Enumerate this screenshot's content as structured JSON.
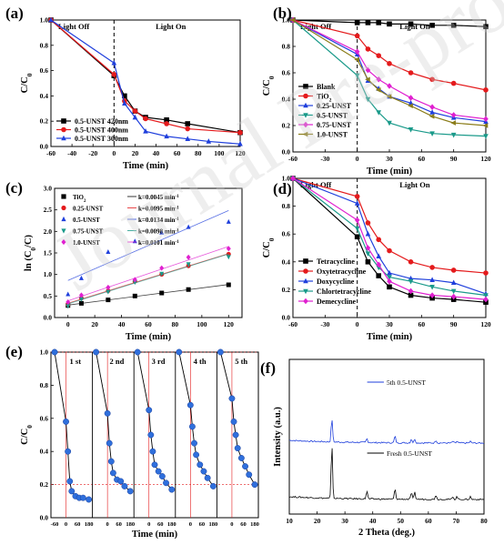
{
  "watermark": "Journal Pre-proof",
  "chart_data": [
    {
      "panel": "(a)",
      "type": "line",
      "ylabel": "C/C0",
      "xlabel": "Time (min)",
      "xlim": [
        -60,
        120
      ],
      "ylim": [
        0,
        1.0
      ],
      "xticks": [
        -60,
        -40,
        -20,
        0,
        20,
        40,
        60,
        80,
        100,
        120
      ],
      "yticks": [
        0.0,
        0.2,
        0.4,
        0.6,
        0.8,
        1.0
      ],
      "light_off_label": "Light Off",
      "light_on_label": "Light On",
      "legend": "bottom-left",
      "series": [
        {
          "name": "0.5-UNST 420nm",
          "color": "#000000",
          "marker": "square",
          "x": [
            -60,
            0,
            10,
            20,
            30,
            50,
            70,
            120
          ],
          "y": [
            1.0,
            0.56,
            0.4,
            0.28,
            0.23,
            0.21,
            0.18,
            0.11
          ]
        },
        {
          "name": "0.5-UNST 400nm",
          "color": "#e41a1c",
          "marker": "circle",
          "x": [
            -60,
            0,
            10,
            20,
            30,
            50,
            70,
            120
          ],
          "y": [
            1.0,
            0.57,
            0.36,
            0.28,
            0.22,
            0.18,
            0.14,
            0.11
          ]
        },
        {
          "name": "0.5-UNST 300nm",
          "color": "#1f3fdc",
          "marker": "triangle",
          "x": [
            -60,
            0,
            10,
            20,
            30,
            50,
            70,
            90,
            120
          ],
          "y": [
            1.0,
            0.66,
            0.34,
            0.23,
            0.12,
            0.08,
            0.06,
            0.04,
            0.02
          ]
        }
      ]
    },
    {
      "panel": "(b)",
      "type": "line",
      "ylabel": "C/C0",
      "xlabel": "Time (min)",
      "xlim": [
        -60,
        120
      ],
      "ylim": [
        0,
        1.0
      ],
      "xticks": [
        -60,
        -30,
        0,
        30,
        60,
        90,
        120
      ],
      "yticks": [
        0.0,
        0.2,
        0.4,
        0.6,
        0.8,
        1.0
      ],
      "light_off_label": "Light Off",
      "light_on_label": "Light On",
      "legend": "bottom-left",
      "series": [
        {
          "name": "Blank",
          "color": "#000000",
          "marker": "square",
          "x": [
            -60,
            0,
            10,
            20,
            30,
            50,
            70,
            90,
            120
          ],
          "y": [
            1.0,
            0.98,
            0.98,
            0.98,
            0.97,
            0.97,
            0.96,
            0.96,
            0.95
          ]
        },
        {
          "name": "TiO2",
          "color": "#e41a1c",
          "marker": "circle",
          "x": [
            -60,
            0,
            10,
            20,
            30,
            50,
            70,
            90,
            120
          ],
          "y": [
            1.0,
            0.88,
            0.78,
            0.73,
            0.67,
            0.6,
            0.55,
            0.52,
            0.47
          ]
        },
        {
          "name": "0.25-UNST",
          "color": "#1f3fdc",
          "marker": "triangle",
          "x": [
            -60,
            0,
            10,
            20,
            30,
            50,
            70,
            90,
            120
          ],
          "y": [
            1.0,
            0.74,
            0.54,
            0.48,
            0.42,
            0.37,
            0.3,
            0.26,
            0.23
          ]
        },
        {
          "name": "0.5-UNST",
          "color": "#1a9a8a",
          "marker": "triangle-down",
          "x": [
            -60,
            0,
            10,
            20,
            30,
            50,
            70,
            90,
            120
          ],
          "y": [
            1.0,
            0.58,
            0.4,
            0.3,
            0.22,
            0.17,
            0.14,
            0.13,
            0.12
          ]
        },
        {
          "name": "0.75-UNST",
          "color": "#e020d0",
          "marker": "diamond",
          "x": [
            -60,
            0,
            10,
            20,
            30,
            50,
            70,
            90,
            120
          ],
          "y": [
            1.0,
            0.76,
            0.62,
            0.55,
            0.5,
            0.41,
            0.34,
            0.28,
            0.25
          ]
        },
        {
          "name": "1.0-UNST",
          "color": "#8b7d1a",
          "marker": "triangle-left",
          "x": [
            -60,
            0,
            10,
            20,
            30,
            50,
            70,
            90,
            120
          ],
          "y": [
            1.0,
            0.7,
            0.55,
            0.47,
            0.42,
            0.35,
            0.27,
            0.22,
            0.2
          ]
        }
      ]
    },
    {
      "panel": "(c)",
      "type": "scatter",
      "ylabel": "ln (C0/C)",
      "xlabel": "Time (min)",
      "xlim": [
        -10,
        130
      ],
      "ylim": [
        0,
        3.0
      ],
      "xticks": [
        0,
        20,
        40,
        60,
        80,
        100,
        120
      ],
      "yticks": [
        0.0,
        0.5,
        1.0,
        1.5,
        2.0,
        2.5,
        3.0
      ],
      "legend": "top-left",
      "series": [
        {
          "name": "TiO2",
          "k": "k=0.0045 min-1",
          "color": "#000000",
          "marker": "square",
          "x": [
            0,
            10,
            30,
            50,
            70,
            90,
            120
          ],
          "y": [
            0.28,
            0.33,
            0.41,
            0.5,
            0.57,
            0.65,
            0.76
          ]
        },
        {
          "name": "0.25-UNST",
          "k": "k=0.0095 min-1",
          "color": "#e41a1c",
          "marker": "circle",
          "x": [
            0,
            10,
            30,
            50,
            70,
            90,
            120
          ],
          "y": [
            0.3,
            0.45,
            0.62,
            0.84,
            1.0,
            1.2,
            1.47
          ]
        },
        {
          "name": "0.5-UNST",
          "k": "k=0.0134 min-1",
          "color": "#1f3fdc",
          "marker": "triangle",
          "x": [
            0,
            10,
            30,
            50,
            70,
            90,
            120
          ],
          "y": [
            0.54,
            0.91,
            1.52,
            1.77,
            1.97,
            2.1,
            2.22
          ]
        },
        {
          "name": "0.75-UNST",
          "k": "k=0.0098 min-1",
          "color": "#1a9a8a",
          "marker": "triangle-down",
          "x": [
            0,
            10,
            30,
            50,
            70,
            90,
            120
          ],
          "y": [
            0.27,
            0.43,
            0.6,
            0.82,
            1.02,
            1.24,
            1.41
          ]
        },
        {
          "name": "1.0-UNST",
          "k": "k=0.0101 min-1",
          "color": "#e020d0",
          "marker": "diamond",
          "x": [
            0,
            10,
            30,
            50,
            70,
            90,
            120
          ],
          "y": [
            0.36,
            0.52,
            0.7,
            0.88,
            1.15,
            1.4,
            1.6
          ]
        }
      ]
    },
    {
      "panel": "(d)",
      "type": "line",
      "ylabel": "C/C0",
      "xlabel": "Time (min)",
      "xlim": [
        -60,
        120
      ],
      "ylim": [
        0,
        1.0
      ],
      "xticks": [
        -60,
        -30,
        0,
        30,
        60,
        90,
        120
      ],
      "yticks": [
        0.0,
        0.2,
        0.4,
        0.6,
        0.8,
        1.0
      ],
      "light_off_label": "Light Off",
      "light_on_label": "Light On",
      "legend": "bottom-left",
      "series": [
        {
          "name": "Tetracycline",
          "color": "#000000",
          "marker": "square",
          "x": [
            -60,
            0,
            10,
            20,
            30,
            50,
            70,
            90,
            120
          ],
          "y": [
            1.0,
            0.58,
            0.4,
            0.3,
            0.22,
            0.16,
            0.14,
            0.13,
            0.11
          ]
        },
        {
          "name": "Oxytetracycline",
          "color": "#e41a1c",
          "marker": "circle",
          "x": [
            -60,
            0,
            10,
            20,
            30,
            50,
            70,
            90,
            120
          ],
          "y": [
            1.0,
            0.87,
            0.68,
            0.56,
            0.48,
            0.4,
            0.36,
            0.34,
            0.32
          ]
        },
        {
          "name": "Doxycycline",
          "color": "#1f3fdc",
          "marker": "triangle",
          "x": [
            -60,
            0,
            10,
            20,
            30,
            50,
            70,
            90,
            120
          ],
          "y": [
            1.0,
            0.82,
            0.6,
            0.44,
            0.32,
            0.28,
            0.27,
            0.25,
            0.17
          ]
        },
        {
          "name": "Chlortetracycline",
          "color": "#1a9a8a",
          "marker": "triangle-down",
          "x": [
            -60,
            0,
            10,
            20,
            30,
            50,
            70,
            90,
            120
          ],
          "y": [
            1.0,
            0.64,
            0.46,
            0.36,
            0.29,
            0.26,
            0.22,
            0.19,
            0.16
          ]
        },
        {
          "name": "Demecycline",
          "color": "#e020d0",
          "marker": "diamond",
          "x": [
            -60,
            0,
            10,
            20,
            30,
            50,
            70,
            90,
            120
          ],
          "y": [
            1.0,
            0.7,
            0.5,
            0.38,
            0.26,
            0.19,
            0.16,
            0.15,
            0.13
          ]
        }
      ]
    },
    {
      "panel": "(e)",
      "type": "line",
      "ylabel": "C/C0",
      "xlabel": "Time (min)",
      "ylim": [
        0,
        1.0
      ],
      "yticks": [
        0.0,
        0.2,
        0.4,
        0.6,
        0.8,
        1.0
      ],
      "cycle_tick_labels": [
        "-60",
        "0",
        "60",
        "180"
      ],
      "cycles": [
        {
          "name": "1 st",
          "x": [
            -60,
            0,
            10,
            20,
            30,
            50,
            70,
            90,
            120
          ],
          "y": [
            1.0,
            0.58,
            0.4,
            0.22,
            0.16,
            0.13,
            0.12,
            0.12,
            0.11
          ]
        },
        {
          "name": "2 nd",
          "x": [
            -60,
            0,
            10,
            20,
            30,
            50,
            70,
            90,
            120
          ],
          "y": [
            1.0,
            0.63,
            0.45,
            0.34,
            0.27,
            0.23,
            0.22,
            0.19,
            0.16
          ]
        },
        {
          "name": "3 rd",
          "x": [
            -60,
            0,
            10,
            20,
            30,
            50,
            70,
            90,
            120
          ],
          "y": [
            1.0,
            0.65,
            0.5,
            0.4,
            0.32,
            0.28,
            0.25,
            0.21,
            0.17
          ]
        },
        {
          "name": "4 th",
          "x": [
            -60,
            0,
            10,
            20,
            30,
            50,
            70,
            90,
            120
          ],
          "y": [
            1.0,
            0.68,
            0.55,
            0.45,
            0.38,
            0.32,
            0.28,
            0.24,
            0.19
          ]
        },
        {
          "name": "5 th",
          "x": [
            -60,
            0,
            10,
            20,
            30,
            50,
            70,
            90,
            120
          ],
          "y": [
            1.0,
            0.72,
            0.58,
            0.5,
            0.42,
            0.36,
            0.31,
            0.26,
            0.2
          ]
        }
      ],
      "reference_lines": [
        1.0,
        0.2
      ]
    },
    {
      "panel": "(f)",
      "type": "line",
      "ylabel": "Intensity (a.u.)",
      "xlabel": "2 Theta (deg.)",
      "xlim": [
        10,
        80
      ],
      "xticks": [
        10,
        20,
        30,
        40,
        50,
        60,
        70,
        80
      ],
      "series": [
        {
          "name": "5th 0.5-UNST",
          "color": "#1f3fdc",
          "offset": 1.0,
          "peaks": [
            {
              "x": 25.3,
              "h": 0.42,
              "w": 0.35
            },
            {
              "x": 37.9,
              "h": 0.07,
              "w": 0.35
            },
            {
              "x": 48.0,
              "h": 0.12,
              "w": 0.35
            },
            {
              "x": 53.9,
              "h": 0.07,
              "w": 0.35
            },
            {
              "x": 55.1,
              "h": 0.07,
              "w": 0.35
            },
            {
              "x": 62.7,
              "h": 0.05,
              "w": 0.35
            },
            {
              "x": 68.8,
              "h": 0.03,
              "w": 0.35
            },
            {
              "x": 70.3,
              "h": 0.03,
              "w": 0.35
            },
            {
              "x": 75.1,
              "h": 0.03,
              "w": 0.35
            }
          ]
        },
        {
          "name": "Fresh 0.5-UNST",
          "color": "#000000",
          "offset": 0.0,
          "peaks": [
            {
              "x": 25.3,
              "h": 0.95,
              "w": 0.35
            },
            {
              "x": 37.9,
              "h": 0.14,
              "w": 0.35
            },
            {
              "x": 48.0,
              "h": 0.18,
              "w": 0.35
            },
            {
              "x": 53.9,
              "h": 0.12,
              "w": 0.35
            },
            {
              "x": 55.1,
              "h": 0.12,
              "w": 0.35
            },
            {
              "x": 62.7,
              "h": 0.08,
              "w": 0.35
            },
            {
              "x": 68.8,
              "h": 0.05,
              "w": 0.35
            },
            {
              "x": 70.3,
              "h": 0.05,
              "w": 0.35
            },
            {
              "x": 75.1,
              "h": 0.05,
              "w": 0.35
            }
          ]
        }
      ]
    }
  ]
}
